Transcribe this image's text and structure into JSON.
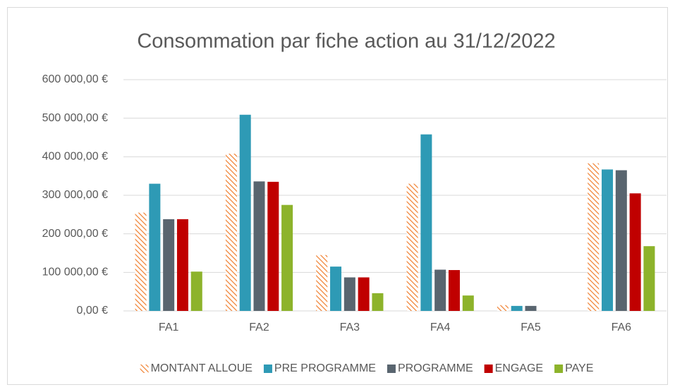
{
  "chart_data": {
    "type": "bar",
    "title": "Consommation par fiche action au 31/12/2022",
    "categories": [
      "FA1",
      "FA2",
      "FA3",
      "FA4",
      "FA5",
      "FA6"
    ],
    "series": [
      {
        "name": "MONTANT ALLOUE",
        "color": "#f07f2e",
        "pattern": "hatch",
        "values": [
          255000,
          408000,
          145000,
          330000,
          15000,
          383000
        ]
      },
      {
        "name": "PRE PROGRAMME",
        "color": "#2e9ab5",
        "values": [
          330000,
          509000,
          115000,
          458000,
          13000,
          367000
        ]
      },
      {
        "name": "PROGRAMME",
        "color": "#59656f",
        "values": [
          238000,
          336000,
          87000,
          107000,
          13000,
          365000
        ]
      },
      {
        "name": "ENGAGE",
        "color": "#c00000",
        "values": [
          238000,
          335000,
          87000,
          106000,
          0,
          305000
        ]
      },
      {
        "name": "PAYE",
        "color": "#8db32b",
        "values": [
          102000,
          275000,
          46000,
          40000,
          0,
          168000
        ]
      }
    ],
    "ylim": [
      0,
      600000
    ],
    "yticks": [
      {
        "value": 0,
        "label": "0,00 €"
      },
      {
        "value": 100000,
        "label": "100 000,00 €"
      },
      {
        "value": 200000,
        "label": "200 000,00 €"
      },
      {
        "value": 300000,
        "label": "300 000,00 €"
      },
      {
        "value": 400000,
        "label": "400 000,00 €"
      },
      {
        "value": 500000,
        "label": "500 000,00 €"
      },
      {
        "value": 600000,
        "label": "600 000,00 €"
      }
    ],
    "grid": true,
    "legend": "bottom"
  }
}
